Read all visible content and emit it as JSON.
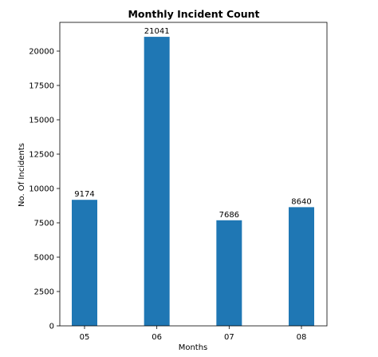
{
  "chart_data": {
    "type": "bar",
    "title": "Monthly Incident Count",
    "xlabel": "Months",
    "ylabel": "No. Of Incidents",
    "categories": [
      "05",
      "06",
      "07",
      "08"
    ],
    "values": [
      9174,
      21041,
      7686,
      8640
    ],
    "data_labels": [
      "9174",
      "21041",
      "7686",
      "8640"
    ],
    "yticks": [
      0,
      2500,
      5000,
      7500,
      10000,
      12500,
      15000,
      17500,
      20000
    ],
    "ylim": [
      0,
      22093
    ],
    "bar_color": "#1f77b4",
    "grid": false,
    "legend": false
  }
}
